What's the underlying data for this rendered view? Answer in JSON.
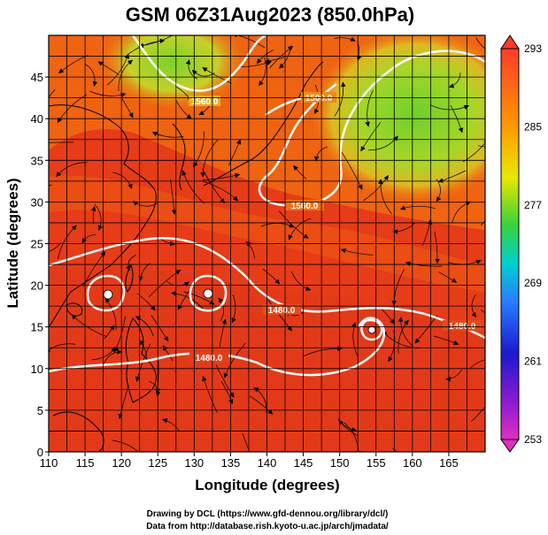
{
  "map": {
    "title": "GSM 06Z31Aug2023 (850.0hPa)",
    "xlabel": "Longitude (degrees)",
    "ylabel": "Latitude  (degrees)",
    "x_ticks": [
      "110",
      "115",
      "120",
      "125",
      "130",
      "135",
      "140",
      "145",
      "150",
      "155",
      "160",
      "165"
    ],
    "y_ticks": [
      "0",
      "5",
      "10",
      "15",
      "20",
      "25",
      "30",
      "35",
      "40",
      "45"
    ],
    "lon_range": [
      110,
      170
    ],
    "lat_range": [
      0,
      50
    ],
    "grid": true,
    "contour_labels": [
      "1560.0",
      "1560.0",
      "1480.0",
      "1480.0",
      "1480.0",
      "1500.0"
    ],
    "colors": {
      "field_hot": "#e8381a",
      "field_warm": "#f06a10",
      "field_green": "#7ad32a",
      "contour": "#ffffff",
      "streamline": "#000000"
    }
  },
  "colorbar": {
    "ticks": [
      "293",
      "285",
      "277",
      "269",
      "261",
      "253"
    ],
    "range": [
      253,
      293
    ],
    "colors": [
      "#ff3a2a",
      "#ff9a00",
      "#e8e800",
      "#3ad23a",
      "#00d0d0",
      "#2a7aff",
      "#1a1ad0",
      "#8a1ad0",
      "#e030c0"
    ]
  },
  "credits": [
    "Drawing by DCL (https://www.gfd-dennou.org/library/dcl/)",
    "Data from http://database.rish.kyoto-u.ac.jp/arch/jmadata/"
  ]
}
